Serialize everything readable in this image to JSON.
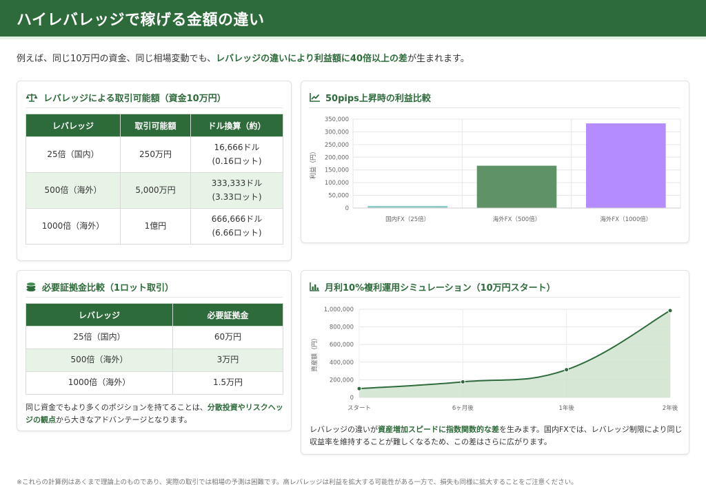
{
  "header": {
    "title": "ハイレバレッジで稼げる金額の違い"
  },
  "intro": {
    "prefix": "例えば、同じ10万円の資金、同じ相場変動でも、",
    "highlight": "レバレッジの違いにより利益額に40倍以上の差",
    "suffix": "が生まれます。"
  },
  "trade_card": {
    "title": "レバレッジによる取引可能額（資金10万円）",
    "icon": "scale-icon",
    "headers": [
      "レバレッジ",
      "取引可能額",
      "ドル換算（約）"
    ],
    "rows": [
      {
        "leverage": "25倍（国内）",
        "amount": "250万円",
        "usd": "16,666ドル",
        "lots": "(0.16ロット)"
      },
      {
        "leverage": "500倍（海外）",
        "amount": "5,000万円",
        "usd": "333,333ドル",
        "lots": "(3.33ロット)"
      },
      {
        "leverage": "1000倍（海外）",
        "amount": "1億円",
        "usd": "666,666ドル",
        "lots": "(6.66ロット)"
      }
    ]
  },
  "margin_card": {
    "title": "必要証拠金比較（1ロット取引）",
    "icon": "coins-icon",
    "headers": [
      "レバレッジ",
      "必要証拠金"
    ],
    "rows": [
      {
        "leverage": "25倍（国内）",
        "margin": "60万円"
      },
      {
        "leverage": "500倍（海外）",
        "margin": "3万円"
      },
      {
        "leverage": "1000倍（海外）",
        "margin": "1.5万円"
      }
    ],
    "note_prefix": "同じ資金でもより多くのポジションを持てることは、",
    "note_highlight": "分散投資やリスクヘッジの観点",
    "note_suffix": "から大きなアドバンテージとなります。"
  },
  "profit_card": {
    "title": "50pips上昇時の利益比較",
    "icon": "line-chart-icon"
  },
  "sim_card": {
    "title": "月利10%複利運用シミュレーション（10万円スタート）",
    "icon": "bar-chart-icon",
    "note_prefix": "レバレッジの違いが",
    "note_highlight": "資産増加スピードに指数関数的な差",
    "note_suffix": "を生みます。国内FXでは、レバレッジ制限により同じ収益率を維持することが難しくなるため、この差はさらに広がります。"
  },
  "footer": {
    "text": "※これらの計算例はあくまで理論上のものであり、実際の取引では相場の予測は困難です。高レバレッジは利益を拡大する可能性がある一方で、損失も同様に拡大することをご注意ください。"
  },
  "colors": {
    "brand": "#2e6b3a",
    "bar_domestic": "#8ecbc9",
    "bar_overseas_500": "#5f9267",
    "bar_overseas_1000": "#b48cff",
    "area": "#cfe3cf"
  },
  "chart_data": [
    {
      "type": "bar",
      "categories": [
        "国内FX（25倍）",
        "海外FX（500倍）",
        "海外FX（1000倍）"
      ],
      "values": [
        8333,
        166667,
        333333
      ],
      "ylabel": "利益（円）",
      "ylim": [
        0,
        350000
      ],
      "yticks": [
        0,
        50000,
        100000,
        150000,
        200000,
        250000,
        300000,
        350000
      ],
      "ytick_labels": [
        "0",
        "50,000",
        "100,000",
        "150,000",
        "200,000",
        "250,000",
        "300,000",
        "350,000"
      ],
      "grid": true
    },
    {
      "type": "area",
      "categories": [
        "スタート",
        "6ヶ月後",
        "1年後",
        "2年後"
      ],
      "values": [
        100000,
        177000,
        314000,
        985000
      ],
      "ylabel": "資産額（円）",
      "ylim": [
        0,
        1000000
      ],
      "yticks": [
        0,
        200000,
        400000,
        600000,
        800000,
        1000000
      ],
      "ytick_labels": [
        "0",
        "200,000",
        "400,000",
        "600,000",
        "800,000",
        "1,000,000"
      ],
      "grid": true
    }
  ]
}
